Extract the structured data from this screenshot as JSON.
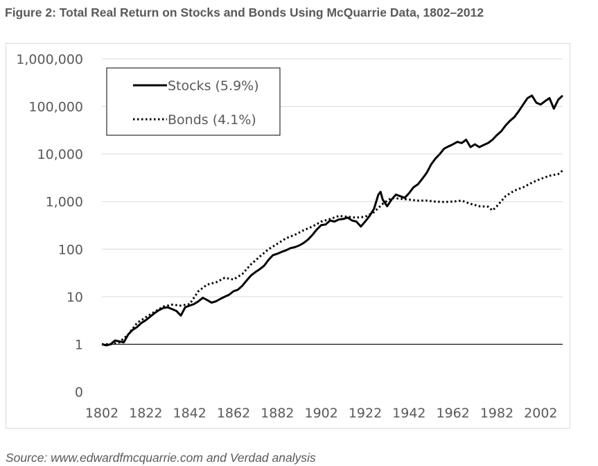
{
  "figure": {
    "title": "Figure 2: Total Real Return on Stocks and Bonds Using McQuarrie Data, 1802–2012",
    "source": "Source: www.edwardfmcquarrie.com and Verdad analysis"
  },
  "chart_data": {
    "type": "line",
    "title": "",
    "xlabel": "",
    "ylabel": "",
    "y_scale": "log",
    "ylim": [
      0.1,
      1000000
    ],
    "xlim": [
      1802,
      2012
    ],
    "grid": true,
    "legend_position": "top-left",
    "x_tick_values": [
      1802,
      1822,
      1842,
      1862,
      1882,
      1902,
      1922,
      1942,
      1962,
      1982,
      2002
    ],
    "x_tick_labels": [
      "1802",
      "1822",
      "1842",
      "1862",
      "1882",
      "1902",
      "1922",
      "1942",
      "1962",
      "1982",
      "2002"
    ],
    "y_tick_values": [
      0.1,
      1,
      10,
      100,
      1000,
      10000,
      100000,
      1000000
    ],
    "y_tick_labels": [
      "0",
      "1",
      "10",
      "100",
      "1,000",
      "10,000",
      "100,000",
      "1,000,000"
    ],
    "series": [
      {
        "name": "Stocks (5.9%)",
        "line_style": "solid",
        "color": "#000000",
        "x": [
          1802,
          1804,
          1806,
          1808,
          1810,
          1812,
          1814,
          1816,
          1818,
          1820,
          1822,
          1824,
          1826,
          1828,
          1830,
          1832,
          1834,
          1836,
          1838,
          1840,
          1842,
          1844,
          1846,
          1848,
          1850,
          1852,
          1854,
          1856,
          1858,
          1860,
          1862,
          1864,
          1866,
          1868,
          1870,
          1872,
          1874,
          1876,
          1878,
          1880,
          1882,
          1884,
          1886,
          1888,
          1890,
          1892,
          1894,
          1896,
          1898,
          1900,
          1902,
          1904,
          1906,
          1908,
          1910,
          1912,
          1914,
          1916,
          1918,
          1920,
          1922,
          1924,
          1926,
          1928,
          1929,
          1930,
          1932,
          1934,
          1936,
          1938,
          1940,
          1942,
          1944,
          1946,
          1948,
          1950,
          1952,
          1954,
          1956,
          1958,
          1960,
          1962,
          1964,
          1966,
          1968,
          1970,
          1972,
          1974,
          1976,
          1978,
          1980,
          1982,
          1984,
          1986,
          1988,
          1990,
          1992,
          1994,
          1996,
          1998,
          2000,
          2002,
          2004,
          2006,
          2008,
          2010,
          2012
        ],
        "values": [
          1.0,
          0.95,
          1.0,
          1.2,
          1.15,
          1.1,
          1.6,
          2.0,
          2.3,
          2.8,
          3.2,
          3.8,
          4.5,
          5.2,
          5.8,
          6.0,
          5.5,
          5.0,
          4.0,
          6.0,
          6.5,
          7.0,
          8.0,
          9.5,
          8.5,
          7.5,
          8.0,
          9.0,
          10,
          11,
          13,
          14,
          17,
          22,
          28,
          33,
          38,
          45,
          60,
          75,
          80,
          88,
          95,
          105,
          110,
          120,
          135,
          160,
          200,
          260,
          320,
          330,
          400,
          380,
          420,
          430,
          460,
          400,
          380,
          300,
          380,
          500,
          700,
          1400,
          1600,
          1100,
          800,
          1100,
          1400,
          1300,
          1200,
          1500,
          2000,
          2300,
          3000,
          4000,
          6000,
          8000,
          10000,
          13000,
          14500,
          16000,
          18000,
          17000,
          20000,
          14000,
          16000,
          14000,
          15500,
          17000,
          20000,
          25000,
          30000,
          40000,
          50000,
          60000,
          80000,
          110000,
          150000,
          170000,
          120000,
          110000,
          130000,
          150000,
          90000,
          140000,
          170000
        ]
      },
      {
        "name": "Bonds (4.1%)",
        "line_style": "dotted",
        "color": "#000000",
        "x": [
          1802,
          1806,
          1810,
          1814,
          1818,
          1822,
          1826,
          1830,
          1834,
          1838,
          1842,
          1846,
          1850,
          1854,
          1858,
          1862,
          1866,
          1870,
          1874,
          1878,
          1882,
          1886,
          1890,
          1894,
          1898,
          1902,
          1906,
          1910,
          1914,
          1918,
          1922,
          1926,
          1930,
          1934,
          1938,
          1942,
          1946,
          1950,
          1954,
          1958,
          1962,
          1966,
          1970,
          1974,
          1978,
          1980,
          1982,
          1986,
          1990,
          1994,
          1998,
          2002,
          2006,
          2010,
          2012
        ],
        "values": [
          1.0,
          1.0,
          1.1,
          1.6,
          2.8,
          3.7,
          4.8,
          6.2,
          6.8,
          6.5,
          7.0,
          13,
          18,
          20,
          25,
          23,
          30,
          48,
          70,
          100,
          130,
          170,
          200,
          250,
          300,
          380,
          430,
          500,
          480,
          460,
          480,
          600,
          900,
          1200,
          1150,
          1100,
          1050,
          1050,
          1000,
          980,
          1000,
          1050,
          900,
          800,
          780,
          650,
          800,
          1300,
          1700,
          2000,
          2500,
          3000,
          3500,
          3800,
          4500
        ]
      }
    ]
  }
}
